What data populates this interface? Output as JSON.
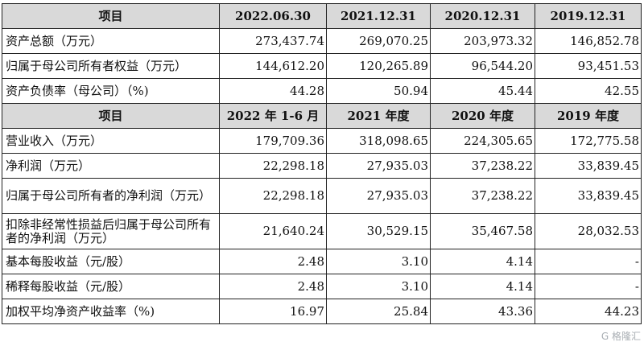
{
  "table": {
    "header1": [
      "项目",
      "2022.06.30",
      "2021.12.31",
      "2020.12.31",
      "2019.12.31"
    ],
    "section1": [
      [
        "资产总额（万元）",
        "273,437.74",
        "269,070.25",
        "203,973.32",
        "146,852.78"
      ],
      [
        "归属于母公司所有者权益（万元）",
        "144,612.20",
        "120,265.89",
        "96,544.20",
        "93,451.53"
      ],
      [
        "资产负债率（母公司）（%)",
        "44.28",
        "50.94",
        "45.44",
        "42.55"
      ]
    ],
    "header2": [
      "项目",
      "2022 年 1-6 月",
      "2021 年度",
      "2020 年度",
      "2019 年度"
    ],
    "section2": [
      [
        "营业收入（万元）",
        "179,709.36",
        "318,098.65",
        "224,305.65",
        "172,775.58"
      ],
      [
        "净利润（万元）",
        "22,298.18",
        "27,935.03",
        "37,238.22",
        "33,839.45"
      ],
      [
        "归属于母公司所有者的净利润（万元）",
        "22,298.18",
        "27,935.03",
        "37,238.22",
        "33,839.45"
      ],
      [
        "扣除非经常性损益后归属于母公司所有者的净利润（万元）",
        "21,640.24",
        "30,529.15",
        "35,467.58",
        "28,032.53"
      ],
      [
        "基本每股收益（元/股）",
        "2.48",
        "3.10",
        "4.14",
        "-"
      ],
      [
        "稀释每股收益（元/股）",
        "2.48",
        "3.10",
        "4.14",
        "-"
      ],
      [
        "加权平均净资产收益率（%)",
        "16.97",
        "25.84",
        "43.36",
        "44.23"
      ]
    ]
  },
  "watermark": "G 格隆汇"
}
